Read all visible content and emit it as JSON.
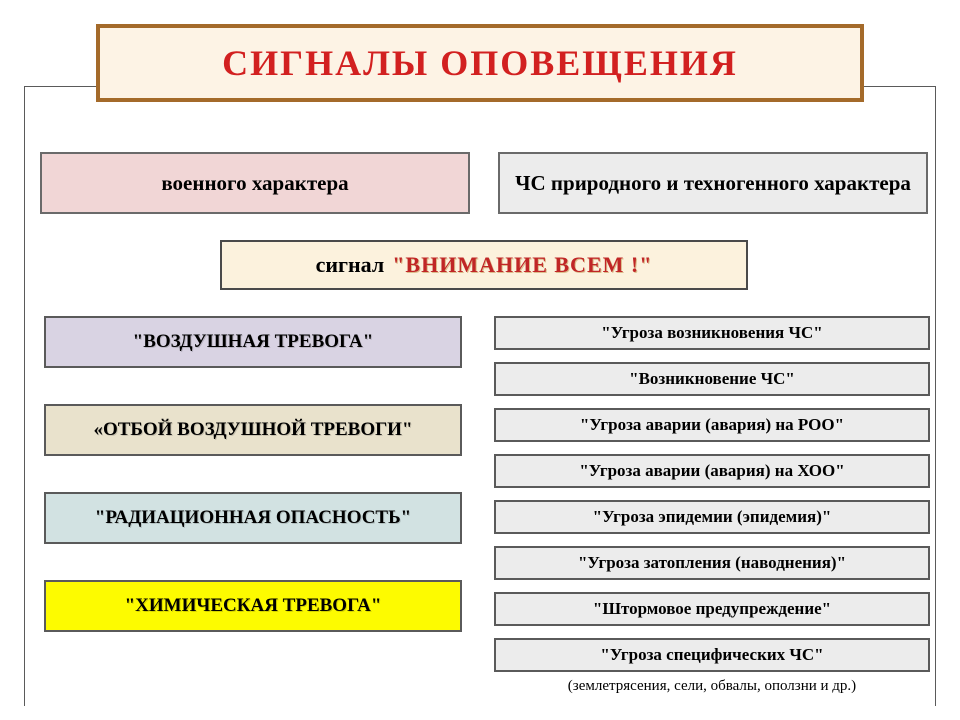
{
  "title": "СИГНАЛЫ  ОПОВЕЩЕНИЯ",
  "title_box": {
    "bg": "#fdf3e5",
    "border": "#a46a2a",
    "text_color": "#d22020",
    "fontsize": 36
  },
  "categories": [
    {
      "label": "военного  характера",
      "bg": "#f1d6d6"
    },
    {
      "label": "ЧС  природного и техногенного характера",
      "bg": "#ececec"
    }
  ],
  "attention": {
    "prefix": "сигнал  ",
    "quoted": "\"ВНИМАНИЕ  ВСЕМ !\"",
    "bg": "#fcf2dd",
    "text_color": "#c02626"
  },
  "left_signals": [
    {
      "label": "\"ВОЗДУШНАЯ ТРЕВОГА\"",
      "bg": "#d9d3e3"
    },
    {
      "label": "«ОТБОЙ ВОЗДУШНОЙ ТРЕВОГИ\"",
      "bg": "#e9e2cc"
    },
    {
      "label": "\"РАДИАЦИОННАЯ  ОПАСНОСТЬ\"",
      "bg": "#d2e2e2"
    },
    {
      "label": "\"ХИМИЧЕСКАЯ  ТРЕВОГА\"",
      "bg": "#fdfb00"
    }
  ],
  "right_signals": [
    {
      "label": "\"Угроза  возникновения  ЧС\"",
      "bg": "#ececec"
    },
    {
      "label": "\"Возникновение  ЧС\"",
      "bg": "#ececec"
    },
    {
      "label": "\"Угроза  аварии  (авария)  на  РОО\"",
      "bg": "#ececec"
    },
    {
      "label": "\"Угроза  аварии  (авария)  на  ХОО\"",
      "bg": "#ececec"
    },
    {
      "label": "\"Угроза  эпидемии  (эпидемия)\"",
      "bg": "#ececec"
    },
    {
      "label": "\"Угроза  затопления  (наводнения)\"",
      "bg": "#ececec"
    },
    {
      "label": "\"Штормовое  предупреждение\"",
      "bg": "#ececec"
    },
    {
      "label": "\"Угроза  специфических  ЧС\"",
      "bg": "#ececec"
    }
  ],
  "footnote": "(землетрясения, сели, обвалы, оползни и др.)",
  "style": {
    "page_bg": "#ffffff",
    "frame_border": "#5a5a5a",
    "box_border": "#5a5a5a",
    "left_box_height": 52,
    "left_gap": 36,
    "right_box_height": 34,
    "right_gap": 12,
    "font_family": "Times New Roman"
  }
}
